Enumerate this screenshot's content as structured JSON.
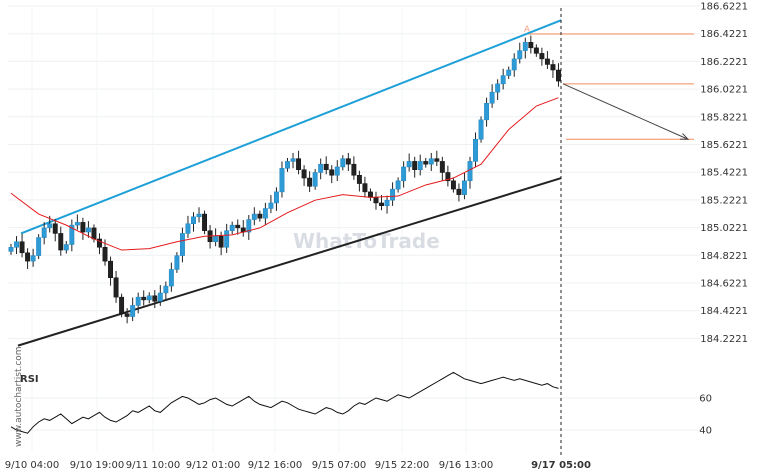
{
  "watermark": "WhatToTrade",
  "side_credit": "www.autochartist.com",
  "chart_data": {
    "type": "candlestick",
    "yaxis": {
      "ticks": [
        "186.6221",
        "186.4221",
        "186.2221",
        "186.0221",
        "185.8221",
        "185.6221",
        "185.4221",
        "185.2221",
        "185.0221",
        "184.8221",
        "184.6221",
        "184.4221",
        "184.2221"
      ],
      "ylim": [
        184.1221,
        186.6621
      ]
    },
    "xaxis": {
      "ticks": [
        "9/10 04:00",
        "9/10 19:00",
        "9/11 10:00",
        "9/12 01:00",
        "9/12 16:00",
        "9/15 07:00",
        "9/15 22:00",
        "9/16 13:00",
        "9/17 05:00"
      ],
      "highlighted": "9/17 05:00"
    },
    "close_path": [
      184.88,
      184.92,
      184.84,
      184.78,
      184.82,
      184.95,
      185.02,
      185.05,
      184.98,
      184.86,
      184.9,
      185.04,
      185.06,
      184.99,
      185.02,
      184.94,
      184.88,
      184.78,
      184.66,
      184.52,
      184.4,
      184.38,
      184.46,
      184.52,
      184.5,
      184.53,
      184.49,
      184.55,
      184.6,
      184.72,
      184.82,
      184.98,
      185.05,
      185.1,
      185.12,
      185.0,
      184.92,
      184.96,
      184.88,
      185.0,
      185.04,
      185.02,
      184.99,
      185.08,
      185.12,
      185.09,
      185.16,
      185.2,
      185.28,
      185.45,
      185.5,
      185.52,
      185.44,
      185.38,
      185.32,
      185.42,
      185.48,
      185.44,
      185.4,
      185.46,
      185.52,
      185.48,
      185.4,
      185.34,
      185.28,
      185.24,
      185.2,
      185.18,
      185.22,
      185.3,
      185.36,
      185.46,
      185.5,
      185.44,
      185.5,
      185.48,
      185.52,
      185.5,
      185.42,
      185.36,
      185.3,
      185.26,
      185.36,
      185.5,
      185.66,
      185.8,
      185.92,
      186.0,
      186.06,
      186.12,
      186.16,
      186.24,
      186.3,
      186.36,
      186.32,
      186.28,
      186.24,
      186.2,
      186.16,
      186.08
    ],
    "series": [
      {
        "name": "Moving average",
        "type": "line",
        "color": "#e41a1c",
        "x": [
          0,
          5,
          10,
          15,
          20,
          25,
          30,
          35,
          40,
          45,
          50,
          55,
          60,
          65,
          70,
          75,
          80,
          85,
          90,
          95,
          99
        ],
        "values": [
          185.27,
          185.12,
          185.04,
          184.94,
          184.86,
          184.87,
          184.92,
          184.96,
          184.97,
          185.02,
          185.13,
          185.22,
          185.26,
          185.24,
          185.25,
          185.33,
          185.38,
          185.48,
          185.73,
          185.9,
          185.96
        ]
      }
    ],
    "channel": {
      "upper": {
        "from": [
          0,
          184.98
        ],
        "to": [
          99.5,
          186.52
        ],
        "color": "#1da0d8"
      },
      "lower": {
        "from": [
          -1,
          184.17
        ],
        "to": [
          99.5,
          185.38
        ],
        "color": "#222222"
      }
    },
    "levels": [
      {
        "value": 186.42,
        "color": "#f28e5b"
      },
      {
        "value": 186.06,
        "color": "#f28e5b"
      },
      {
        "value": 185.66,
        "color": "#f28e5b"
      }
    ],
    "forecast_arrow": {
      "from": [
        100,
        186.06
      ],
      "to": [
        122,
        185.66
      ],
      "color": "#444444"
    },
    "pattern_marker": {
      "label": "A",
      "x": 92,
      "y": 186.44
    },
    "rsi": {
      "label": "RSI",
      "ticks": [
        "60",
        "40"
      ],
      "ylim": [
        25,
        85
      ],
      "values": [
        42,
        40,
        39,
        38,
        42,
        45,
        47,
        46,
        48,
        50,
        47,
        44,
        46,
        48,
        47,
        49,
        51,
        48,
        46,
        45,
        47,
        49,
        52,
        51,
        53,
        55,
        52,
        51,
        54,
        57,
        59,
        61,
        60,
        58,
        56,
        57,
        59,
        60,
        58,
        56,
        55,
        57,
        59,
        61,
        58,
        56,
        55,
        54,
        56,
        58,
        57,
        55,
        53,
        52,
        51,
        50,
        52,
        54,
        53,
        51,
        50,
        52,
        55,
        57,
        56,
        58,
        60,
        59,
        58,
        60,
        62,
        61,
        60,
        62,
        64,
        66,
        68,
        70,
        72,
        74,
        76,
        74,
        72,
        71,
        70,
        69,
        70,
        71,
        72,
        73,
        72,
        71,
        72,
        71,
        70,
        69,
        68,
        69,
        67,
        66
      ]
    }
  }
}
